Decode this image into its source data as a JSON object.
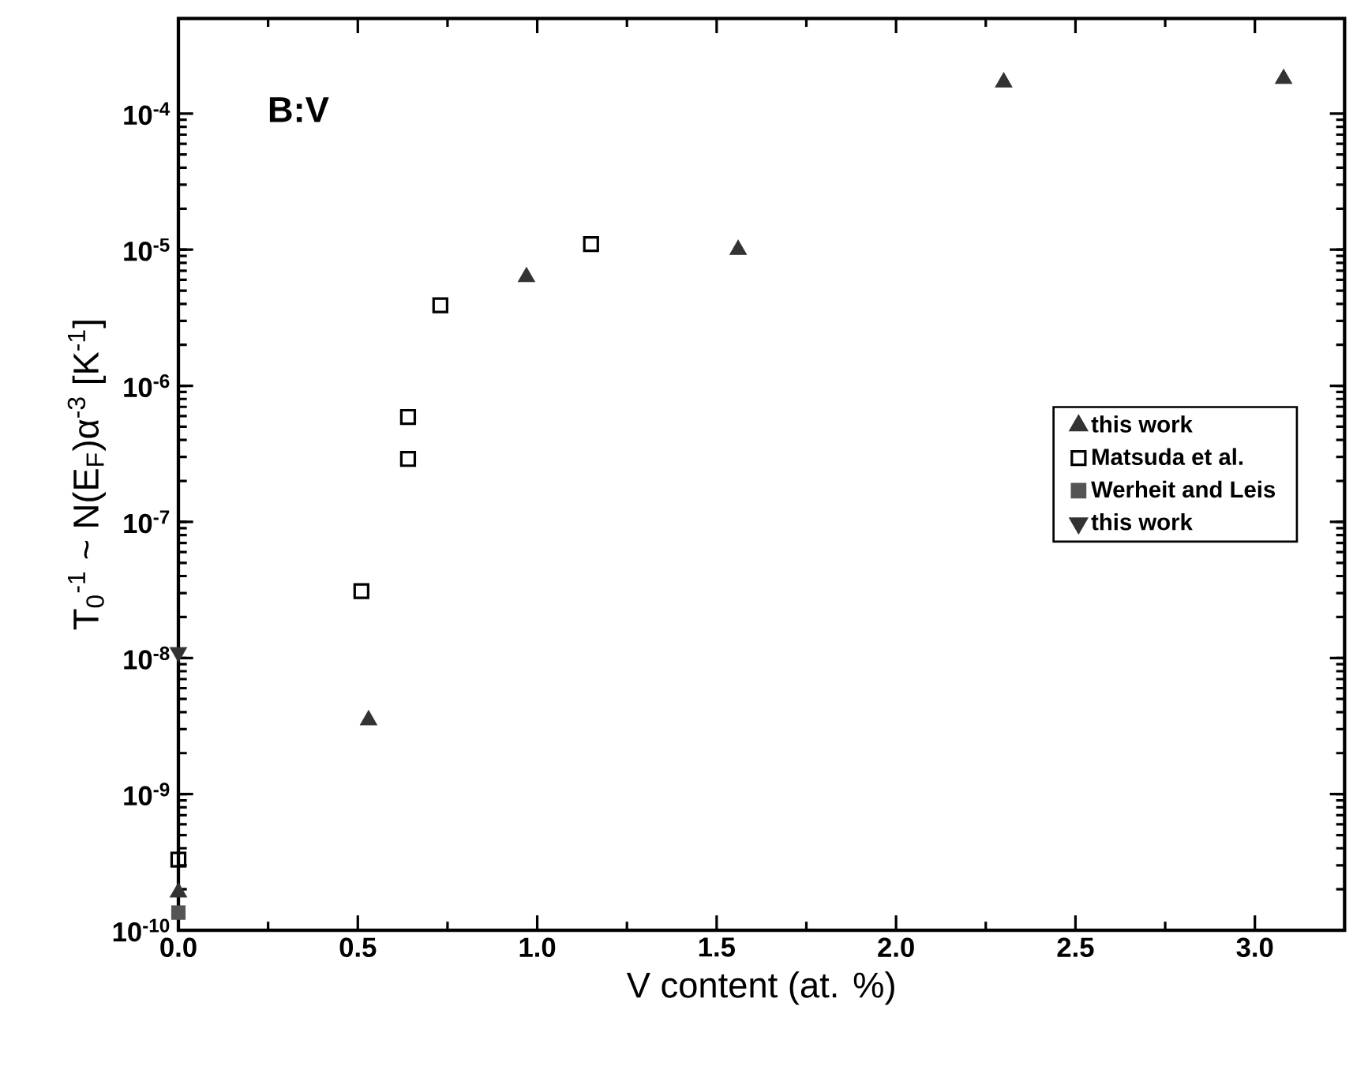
{
  "chart_data": {
    "type": "scatter",
    "xlabel": "V content (at. %)",
    "ylabel": "T$_{0}$$^{-1}$ ~ N(E$_{F}$)α$^{-3}$ [K$^{-1}$]",
    "annotations": [
      "B:V"
    ],
    "log": "y",
    "xlim": [
      0,
      3.25
    ],
    "ylim": [
      1e-10,
      0.0005
    ],
    "xticks": [
      {
        "value": 0,
        "label": "0.0"
      },
      {
        "value": 0.5,
        "label": "0.5"
      },
      {
        "value": 1,
        "label": "1.0"
      },
      {
        "value": 1.5,
        "label": "1.5"
      },
      {
        "value": 2,
        "label": "2.0"
      },
      {
        "value": 2.5,
        "label": "2.5"
      },
      {
        "value": 3,
        "label": "3.0"
      }
    ],
    "yticks": [
      {
        "value": 1e-10,
        "label": "10$^{-10}$"
      },
      {
        "value": 1e-09,
        "label": "10$^{-9}$"
      },
      {
        "value": 1e-08,
        "label": "10$^{-8}$"
      },
      {
        "value": 1e-07,
        "label": "10$^{-7}$"
      },
      {
        "value": 1e-06,
        "label": "10$^{-6}$"
      },
      {
        "value": 1e-05,
        "label": "10$^{-5}$"
      },
      {
        "value": 0.0001,
        "label": "10$^{-4}$"
      }
    ],
    "legend": "right",
    "series": [
      {
        "name": "this work",
        "color": "#333333",
        "marker": "triangle",
        "x": [
          0,
          0.53,
          0.97,
          1.56,
          2.3,
          3.08
        ],
        "values": [
          1.9e-10,
          3.5e-09,
          6.3e-06,
          1e-05,
          0.00017,
          0.00018
        ]
      },
      {
        "name": "Matsuda et al.",
        "color": "#000000",
        "marker": "square-open",
        "x": [
          0,
          0.51,
          0.64,
          0.64,
          0.73,
          1.15
        ],
        "values": [
          3.3e-10,
          3.1e-08,
          5.9e-07,
          2.9e-07,
          3.9e-06,
          1.1e-05
        ]
      },
      {
        "name": "Werheit and Leis",
        "color": "#555555",
        "marker": "square",
        "x": [
          0
        ],
        "values": [
          1.35e-10
        ]
      },
      {
        "name": "this work",
        "color": "#333333",
        "marker": "triangle-down",
        "x": [
          0
        ],
        "values": [
          1.1e-08
        ]
      }
    ]
  }
}
